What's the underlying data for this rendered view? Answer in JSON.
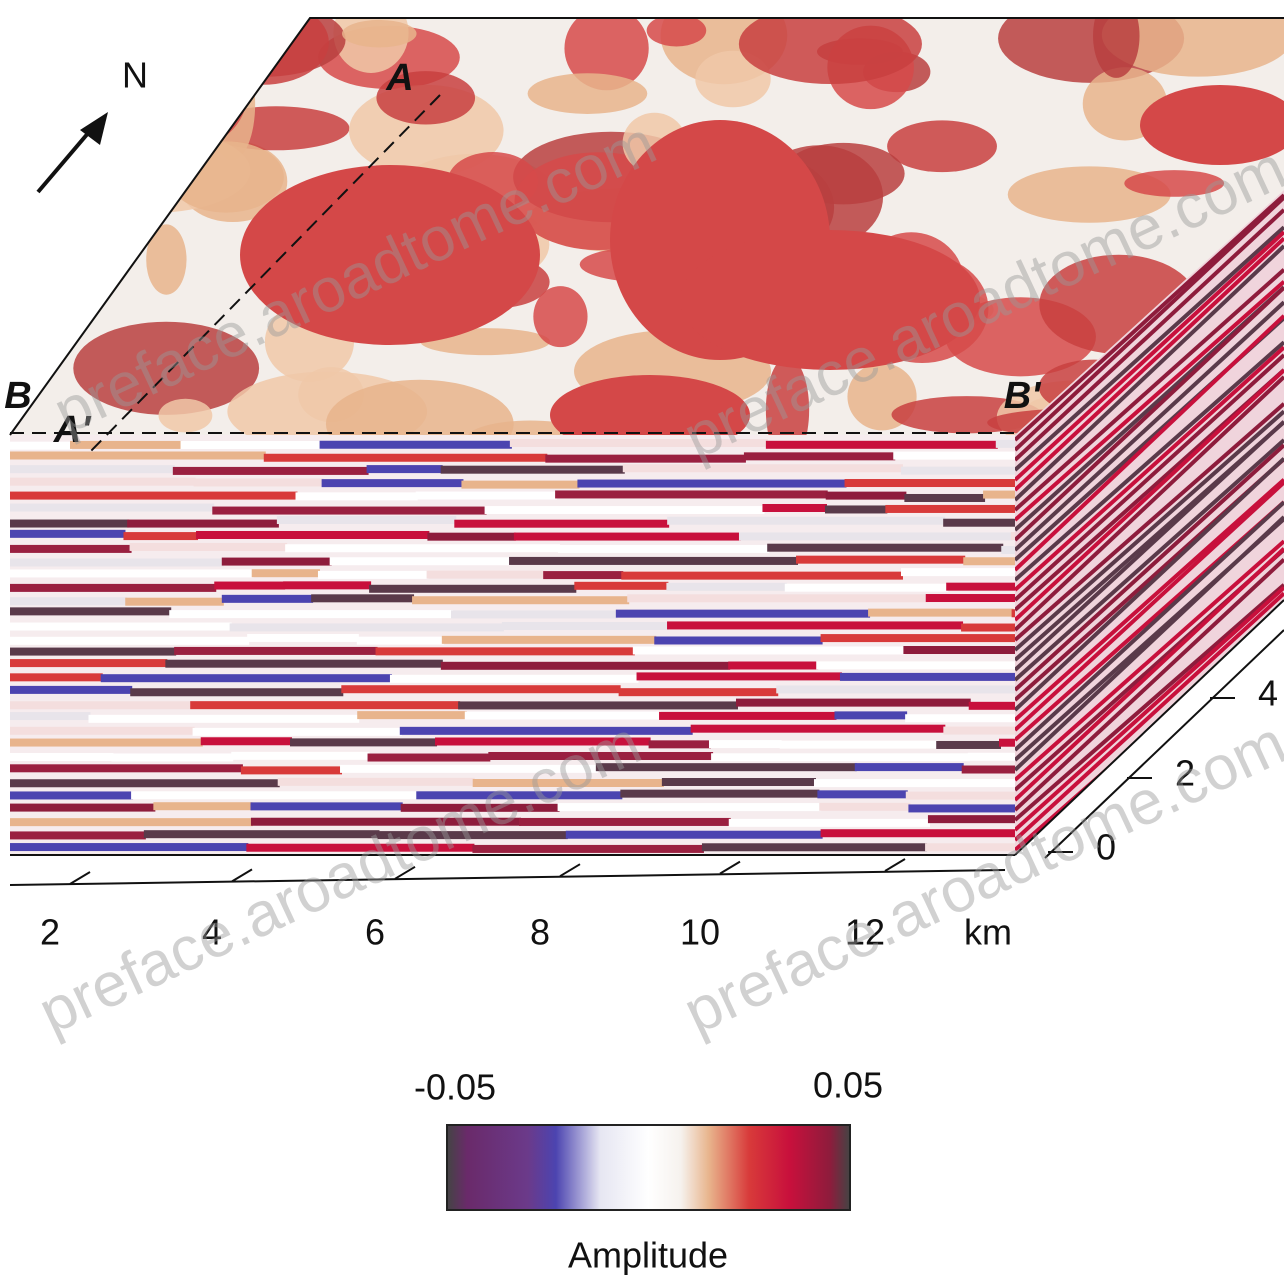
{
  "north_label": "N",
  "section_labels": {
    "a": "A",
    "a_prime": "A'",
    "b": "B",
    "b_prime": "B'"
  },
  "x_axis": {
    "ticks": [
      "2",
      "4",
      "6",
      "8",
      "10",
      "12"
    ],
    "unit": "km"
  },
  "depth_axis": {
    "ticks": [
      "0",
      "2",
      "4"
    ]
  },
  "colorbar": {
    "min_label": "-0.05",
    "max_label": "0.05",
    "title": "Amplitude"
  },
  "watermarks": [
    "preface.aroadtome.com",
    "preface.aroadtome.com",
    "preface.aroadtome.com",
    "preface.aroadtome.com"
  ]
}
